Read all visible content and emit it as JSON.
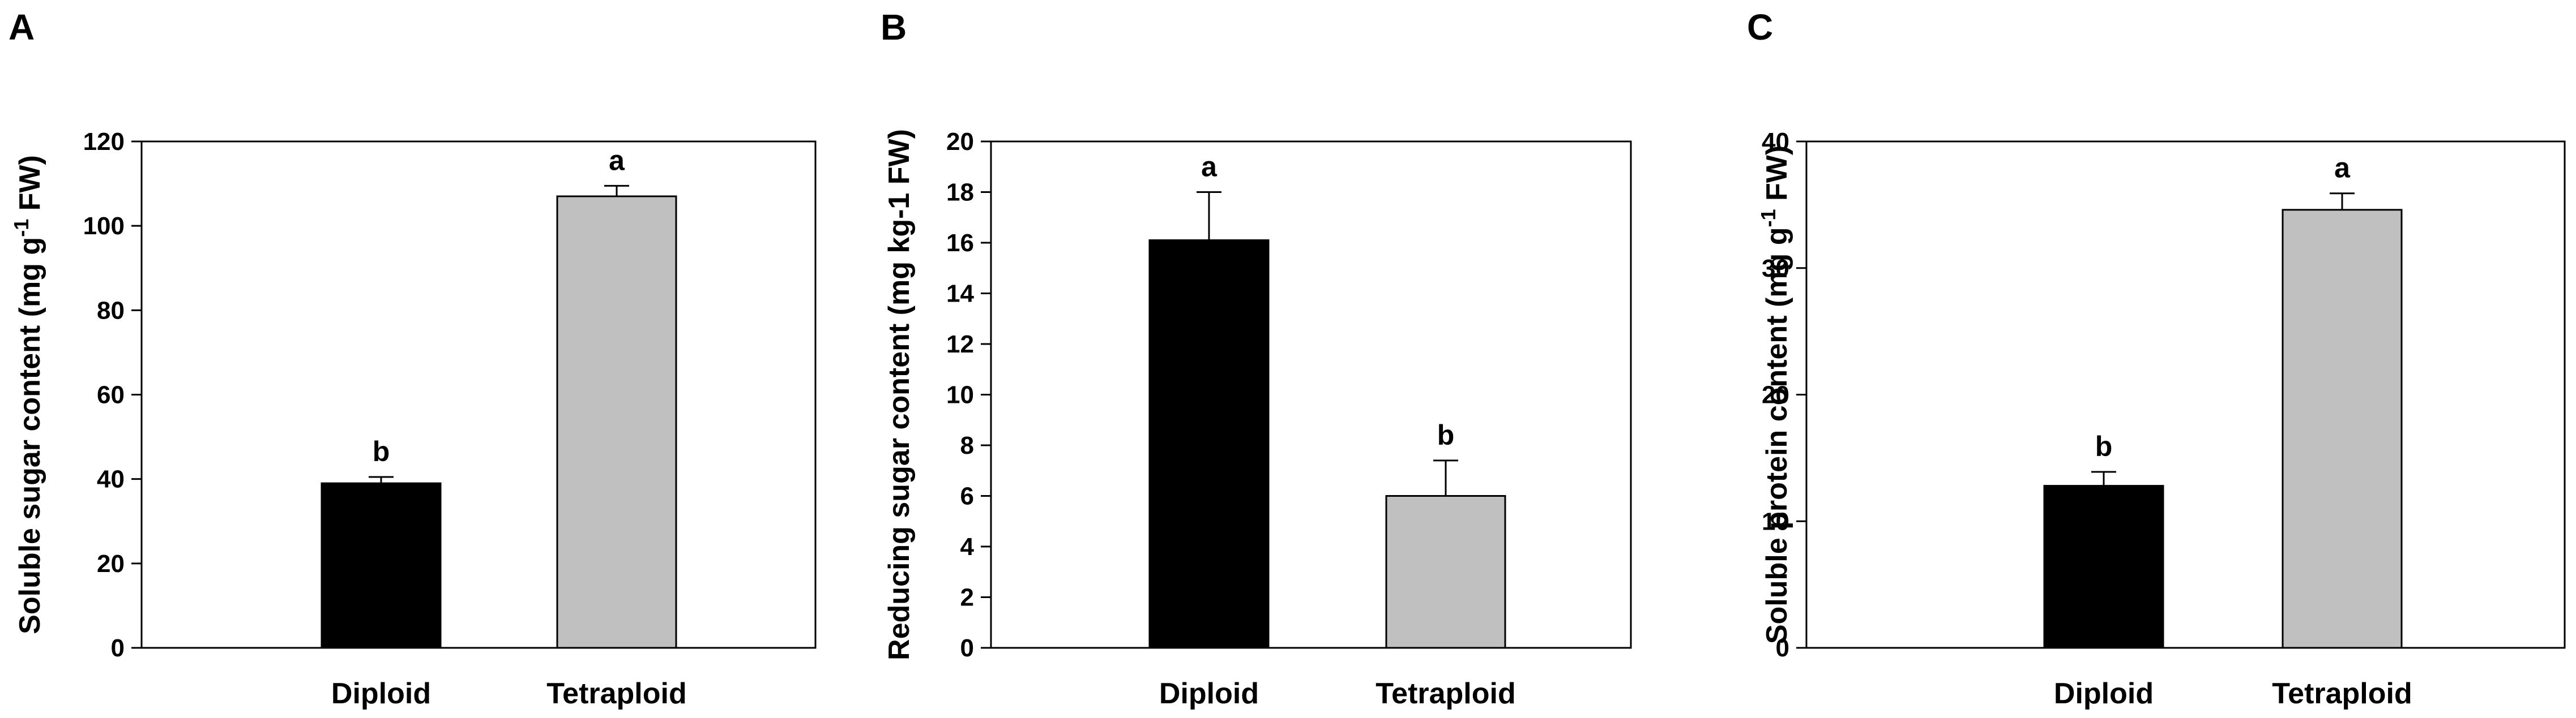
{
  "chart_data": [
    {
      "panel": "A",
      "type": "bar",
      "categories": [
        "Diploid",
        "Tetraploid"
      ],
      "values": [
        39,
        107
      ],
      "errors": [
        1.5,
        2.5
      ],
      "significance": [
        "b",
        "a"
      ],
      "colors": [
        "#000000",
        "#c0c0c0"
      ],
      "ylabel": {
        "pre": "Soluble sugar content (mg g",
        "sup": "-1",
        "post": " FW)"
      },
      "ylim": [
        0,
        120
      ],
      "yticks": [
        0,
        20,
        40,
        60,
        80,
        100,
        120
      ],
      "grid": false
    },
    {
      "panel": "B",
      "type": "bar",
      "categories": [
        "Diploid",
        "Tetraploid"
      ],
      "values": [
        16.1,
        6.0
      ],
      "errors": [
        1.9,
        1.4
      ],
      "significance": [
        "a",
        "b"
      ],
      "colors": [
        "#000000",
        "#c0c0c0"
      ],
      "ylabel": {
        "pre": "Reducing sugar content (mg kg-1 FW)",
        "sup": "",
        "post": ""
      },
      "ylim": [
        0,
        20
      ],
      "yticks": [
        0,
        2,
        4,
        6,
        8,
        10,
        12,
        14,
        16,
        18,
        20
      ],
      "grid": false
    },
    {
      "panel": "C",
      "type": "bar",
      "categories": [
        "Diploid",
        "Tetraploid"
      ],
      "values": [
        12.8,
        34.6
      ],
      "errors": [
        1.1,
        1.3
      ],
      "significance": [
        "b",
        "a"
      ],
      "colors": [
        "#000000",
        "#c0c0c0"
      ],
      "ylabel": {
        "pre": "Soluble protein content (mg g",
        "sup": "-1",
        "post": " FW)"
      },
      "ylim": [
        0,
        40
      ],
      "yticks": [
        0,
        10,
        20,
        30,
        40
      ],
      "grid": false
    }
  ]
}
